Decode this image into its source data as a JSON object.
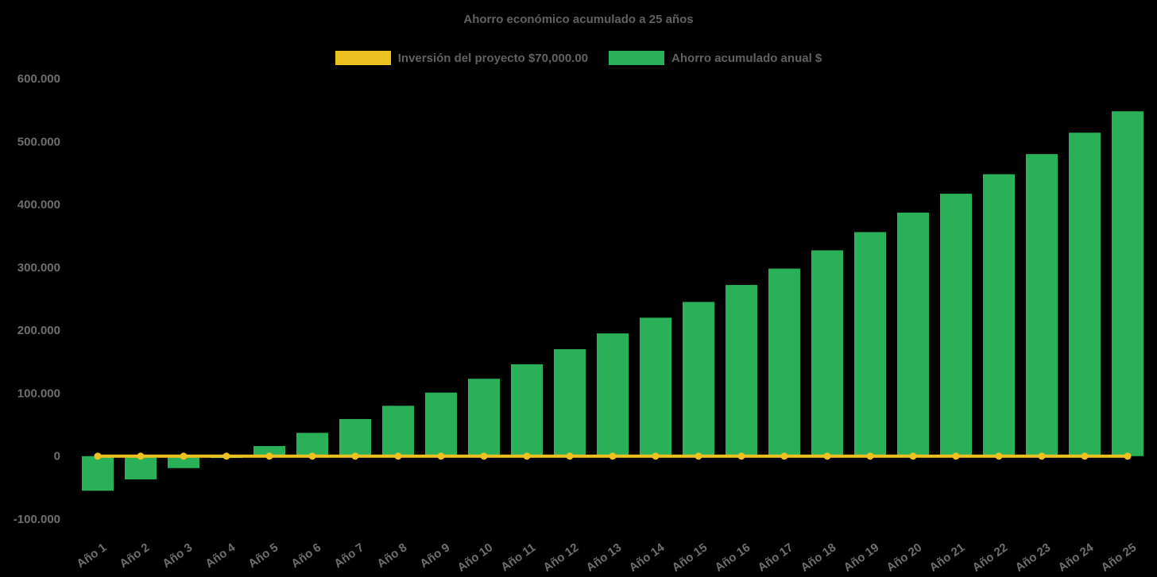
{
  "chart": {
    "title": "Ahorro económico acumulado a 25 años",
    "background_color": "#000000",
    "title_color": "#616161",
    "tick_color": "#6e6e6e",
    "legend": [
      {
        "label": "Inversión del proyecto $70,000.00",
        "color": "#edc120"
      },
      {
        "label": "Ahorro acumulado anual $",
        "color": "#2bb05a"
      }
    ]
  },
  "chart_data": {
    "type": "bar",
    "title": "Ahorro económico acumulado a 25 años",
    "categories": [
      "Año 1",
      "Año 2",
      "Año 3",
      "Año 4",
      "Año 5",
      "Año 6",
      "Año 7",
      "Año 8",
      "Año 9",
      "Año 10",
      "Año 11",
      "Año 12",
      "Año 13",
      "Año 14",
      "Año 15",
      "Año 16",
      "Año 17",
      "Año 18",
      "Año 19",
      "Año 20",
      "Año 21",
      "Año 22",
      "Año 23",
      "Año 24",
      "Año 25"
    ],
    "series": [
      {
        "name": "Inversión del proyecto $70,000.00",
        "type": "line",
        "color": "#edc120",
        "values": [
          0,
          0,
          0,
          0,
          0,
          0,
          0,
          0,
          0,
          0,
          0,
          0,
          0,
          0,
          0,
          0,
          0,
          0,
          0,
          0,
          0,
          0,
          0,
          0,
          0
        ]
      },
      {
        "name": "Ahorro acumulado anual $",
        "type": "bar",
        "color": "#2bb05a",
        "values": [
          -55000,
          -37000,
          -19000,
          -3000,
          16000,
          37000,
          59000,
          80000,
          101000,
          123000,
          146000,
          170000,
          195000,
          220000,
          245000,
          272000,
          298000,
          327000,
          356000,
          387000,
          417000,
          448000,
          480000,
          514000,
          548000
        ]
      }
    ],
    "xlabel": "",
    "ylabel": "",
    "ylim": [
      -100000,
      600000
    ],
    "ytick_step": 100000,
    "ytick_labels": [
      "600.000",
      "500.000",
      "400.000",
      "300.000",
      "200.000",
      "100.000",
      "0",
      "-100.000"
    ],
    "grid": false,
    "legend_position": "top"
  }
}
